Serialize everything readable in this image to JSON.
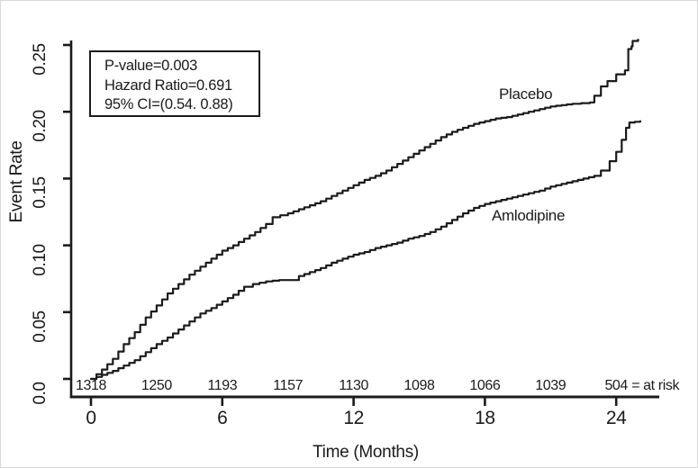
{
  "chart_data": {
    "type": "line",
    "subtype": "kaplan-meier-event-rate",
    "title": "",
    "xlabel": "Time (Months)",
    "ylabel": "Event Rate",
    "xlim": [
      0,
      26
    ],
    "ylim": [
      0,
      0.25
    ],
    "grid": false,
    "line_color": "#1b1b1b",
    "xticks": [
      0,
      6,
      12,
      18,
      24
    ],
    "yticks": [
      {
        "v": 0.0,
        "label": "0.0"
      },
      {
        "v": 0.05,
        "label": "0.05"
      },
      {
        "v": 0.1,
        "label": "0.10"
      },
      {
        "v": 0.15,
        "label": "0.15"
      },
      {
        "v": 0.2,
        "label": "0.20"
      },
      {
        "v": 0.25,
        "label": "0.25"
      }
    ],
    "annotations": [
      "P-value=0.003",
      "Hazard Ratio=0.691",
      "95% CI=(0.54. 0.88)"
    ],
    "series": [
      {
        "name": "Placebo",
        "points": [
          [
            0,
            0.0
          ],
          [
            0.5,
            0.007
          ],
          [
            1,
            0.015
          ],
          [
            1.5,
            0.026
          ],
          [
            2,
            0.035
          ],
          [
            2.5,
            0.046
          ],
          [
            3,
            0.055
          ],
          [
            3.5,
            0.064
          ],
          [
            4,
            0.071
          ],
          [
            4.5,
            0.078
          ],
          [
            5,
            0.084
          ],
          [
            5.5,
            0.09
          ],
          [
            6,
            0.096
          ],
          [
            6.5,
            0.1
          ],
          [
            7,
            0.105
          ],
          [
            7.5,
            0.11
          ],
          [
            8,
            0.116
          ],
          [
            8.3,
            0.121
          ],
          [
            9,
            0.124
          ],
          [
            9.5,
            0.127
          ],
          [
            10,
            0.13
          ],
          [
            10.5,
            0.133
          ],
          [
            11,
            0.137
          ],
          [
            11.5,
            0.141
          ],
          [
            12,
            0.145
          ],
          [
            12.5,
            0.149
          ],
          [
            13,
            0.152
          ],
          [
            13.5,
            0.156
          ],
          [
            14,
            0.161
          ],
          [
            14.5,
            0.166
          ],
          [
            15,
            0.171
          ],
          [
            15.5,
            0.176
          ],
          [
            16,
            0.181
          ],
          [
            16.5,
            0.185
          ],
          [
            17,
            0.188
          ],
          [
            17.5,
            0.191
          ],
          [
            18,
            0.193
          ],
          [
            18.5,
            0.195
          ],
          [
            19,
            0.196
          ],
          [
            19.5,
            0.198
          ],
          [
            20,
            0.2
          ],
          [
            20.5,
            0.202
          ],
          [
            21,
            0.204
          ],
          [
            21.5,
            0.205
          ],
          [
            22,
            0.206
          ],
          [
            22.8,
            0.207
          ],
          [
            23,
            0.212
          ],
          [
            23.3,
            0.219
          ],
          [
            23.6,
            0.223
          ],
          [
            24,
            0.228
          ],
          [
            24.4,
            0.231
          ],
          [
            24.55,
            0.247
          ],
          [
            24.7,
            0.249
          ],
          [
            24.75,
            0.253
          ],
          [
            25,
            0.254
          ]
        ]
      },
      {
        "name": "Amlodipine",
        "points": [
          [
            0,
            0.0
          ],
          [
            0.5,
            0.003
          ],
          [
            1,
            0.006
          ],
          [
            1.5,
            0.01
          ],
          [
            2,
            0.014
          ],
          [
            2.5,
            0.02
          ],
          [
            3,
            0.026
          ],
          [
            3.5,
            0.031
          ],
          [
            4,
            0.037
          ],
          [
            4.5,
            0.043
          ],
          [
            5,
            0.049
          ],
          [
            5.5,
            0.053
          ],
          [
            6,
            0.058
          ],
          [
            6.5,
            0.063
          ],
          [
            7,
            0.069
          ],
          [
            7.4,
            0.071
          ],
          [
            8,
            0.073
          ],
          [
            8.6,
            0.074
          ],
          [
            9.1,
            0.074
          ],
          [
            9.5,
            0.077
          ],
          [
            10,
            0.08
          ],
          [
            10.5,
            0.083
          ],
          [
            11,
            0.087
          ],
          [
            11.5,
            0.09
          ],
          [
            12,
            0.093
          ],
          [
            12.5,
            0.095
          ],
          [
            13,
            0.098
          ],
          [
            13.5,
            0.1
          ],
          [
            14,
            0.102
          ],
          [
            14.5,
            0.105
          ],
          [
            15,
            0.107
          ],
          [
            15.5,
            0.11
          ],
          [
            16,
            0.114
          ],
          [
            16.5,
            0.119
          ],
          [
            17,
            0.124
          ],
          [
            17.5,
            0.128
          ],
          [
            18,
            0.131
          ],
          [
            18.5,
            0.133
          ],
          [
            19,
            0.135
          ],
          [
            19.5,
            0.137
          ],
          [
            20,
            0.139
          ],
          [
            20.5,
            0.141
          ],
          [
            21,
            0.144
          ],
          [
            21.5,
            0.146
          ],
          [
            22,
            0.148
          ],
          [
            22.5,
            0.15
          ],
          [
            23,
            0.152
          ],
          [
            23.3,
            0.156
          ],
          [
            23.7,
            0.163
          ],
          [
            24,
            0.17
          ],
          [
            24.25,
            0.179
          ],
          [
            24.45,
            0.188
          ],
          [
            24.6,
            0.192
          ],
          [
            25.1,
            0.193
          ]
        ]
      }
    ],
    "at_risk": {
      "months": [
        0,
        3,
        6,
        9,
        12,
        15,
        18,
        21,
        24
      ],
      "counts": [
        1318,
        1250,
        1193,
        1157,
        1130,
        1098,
        1066,
        1039,
        504
      ],
      "suffix": "= at risk"
    }
  }
}
